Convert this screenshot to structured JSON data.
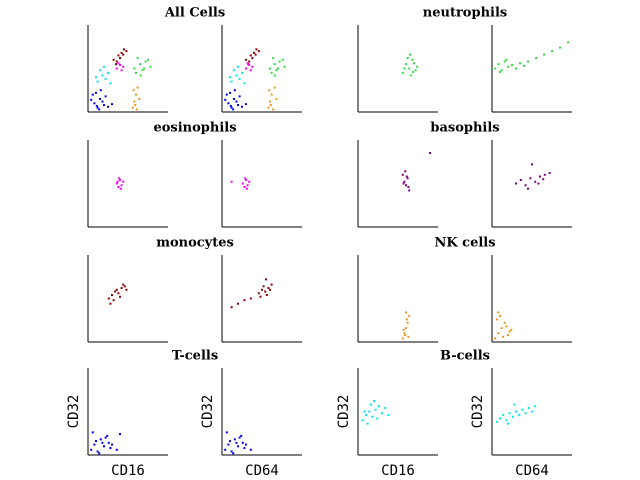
{
  "chart_data": [
    {
      "type": "scatter",
      "title": "All Cells",
      "xlim": [
        0,
        100
      ],
      "ylim": [
        0,
        100
      ],
      "series": [
        {
          "color": "#0000ff",
          "x": [
            8,
            12,
            15,
            20,
            6,
            18,
            25,
            10,
            14,
            22,
            30,
            4,
            16,
            11
          ],
          "y": [
            10,
            5,
            15,
            8,
            20,
            12,
            6,
            22,
            3,
            18,
            9,
            14,
            25,
            7
          ]
        },
        {
          "color": "#00e8e8",
          "x": [
            12,
            18,
            22,
            15,
            25,
            20,
            10,
            28
          ],
          "y": [
            35,
            42,
            38,
            48,
            45,
            52,
            40,
            33
          ]
        },
        {
          "color": "#8b0000",
          "x": [
            32,
            38,
            42,
            36,
            45,
            40,
            48,
            35,
            44
          ],
          "y": [
            60,
            65,
            68,
            58,
            72,
            62,
            70,
            55,
            66
          ]
        },
        {
          "color": "#ff00ff",
          "x": [
            36,
            40,
            42,
            38,
            44
          ],
          "y": [
            50,
            54,
            48,
            56,
            52
          ]
        },
        {
          "color": "#33dd44",
          "x": [
            60,
            65,
            70,
            75,
            62,
            68,
            72,
            78,
            66,
            58
          ],
          "y": [
            45,
            55,
            50,
            60,
            62,
            48,
            58,
            52,
            42,
            50
          ]
        },
        {
          "color": "#e89820",
          "x": [
            56,
            58,
            60,
            62,
            59,
            64,
            57,
            61
          ],
          "y": [
            5,
            12,
            20,
            28,
            8,
            15,
            25,
            3
          ]
        }
      ]
    },
    {
      "type": "scatter",
      "xlim": [
        0,
        100
      ],
      "ylim": [
        0,
        100
      ],
      "series": [
        {
          "color": "#0000ff",
          "x": [
            8,
            12,
            15,
            20,
            6,
            18,
            25,
            10,
            14,
            22,
            30,
            4,
            16,
            11
          ],
          "y": [
            10,
            5,
            15,
            8,
            20,
            12,
            6,
            22,
            3,
            18,
            9,
            14,
            25,
            7
          ]
        },
        {
          "color": "#00e8e8",
          "x": [
            12,
            18,
            22,
            15,
            25,
            20,
            10,
            28
          ],
          "y": [
            35,
            42,
            38,
            48,
            45,
            52,
            40,
            33
          ]
        },
        {
          "color": "#8b0000",
          "x": [
            30,
            36,
            40,
            34,
            43,
            38,
            46,
            33,
            42
          ],
          "y": [
            60,
            65,
            68,
            58,
            72,
            62,
            70,
            55,
            66
          ]
        },
        {
          "color": "#ff00ff",
          "x": [
            30,
            34,
            36,
            32,
            38
          ],
          "y": [
            50,
            54,
            48,
            56,
            52
          ]
        },
        {
          "color": "#33dd44",
          "x": [
            62,
            66,
            70,
            76,
            64,
            68,
            72,
            78,
            66,
            60
          ],
          "y": [
            45,
            55,
            50,
            60,
            62,
            48,
            58,
            52,
            42,
            50
          ]
        },
        {
          "color": "#e89820",
          "x": [
            58,
            60,
            62,
            66,
            61,
            68,
            59,
            64
          ],
          "y": [
            5,
            12,
            20,
            28,
            8,
            15,
            25,
            3
          ]
        }
      ]
    },
    {
      "type": "scatter",
      "title": "neutrophils",
      "xlim": [
        0,
        100
      ],
      "ylim": [
        0,
        100
      ],
      "series": [
        {
          "color": "#33dd44",
          "x": [
            56,
            60,
            64,
            68,
            72,
            62,
            66,
            70,
            74,
            58,
            65,
            69
          ],
          "y": [
            45,
            55,
            50,
            60,
            48,
            62,
            42,
            56,
            52,
            50,
            66,
            46
          ]
        }
      ]
    },
    {
      "type": "scatter",
      "xlim": [
        0,
        100
      ],
      "ylim": [
        0,
        100
      ],
      "series": [
        {
          "color": "#33dd44",
          "x": [
            4,
            8,
            12,
            16,
            20,
            25,
            30,
            35,
            40,
            10,
            18,
            45,
            55,
            65,
            75,
            85,
            95
          ],
          "y": [
            50,
            55,
            48,
            58,
            52,
            54,
            50,
            56,
            53,
            46,
            60,
            58,
            62,
            66,
            70,
            74,
            80
          ]
        }
      ]
    },
    {
      "type": "scatter",
      "title": "eosinophils",
      "xlim": [
        0,
        100
      ],
      "ylim": [
        0,
        100
      ],
      "series": [
        {
          "color": "#ff00ff",
          "x": [
            36,
            38,
            40,
            42,
            44,
            39,
            41,
            37
          ],
          "y": [
            50,
            46,
            54,
            48,
            52,
            56,
            44,
            52
          ]
        }
      ]
    },
    {
      "type": "scatter",
      "xlim": [
        0,
        100
      ],
      "ylim": [
        0,
        100
      ],
      "series": [
        {
          "color": "#ff00ff",
          "x": [
            26,
            28,
            30,
            32,
            34,
            29,
            31,
            12
          ],
          "y": [
            50,
            46,
            54,
            48,
            52,
            56,
            44,
            52
          ]
        }
      ]
    },
    {
      "type": "scatter",
      "title": "basophils",
      "xlim": [
        0,
        100
      ],
      "ylim": [
        0,
        100
      ],
      "series": [
        {
          "color": "#800080",
          "x": [
            56,
            58,
            60,
            62,
            64,
            59,
            61,
            57,
            63,
            90
          ],
          "y": [
            60,
            52,
            48,
            56,
            42,
            64,
            58,
            50,
            46,
            85
          ]
        }
      ]
    },
    {
      "type": "scatter",
      "xlim": [
        0,
        100
      ],
      "ylim": [
        0,
        100
      ],
      "series": [
        {
          "color": "#800080",
          "x": [
            30,
            36,
            42,
            48,
            54,
            60,
            66,
            72,
            45,
            58,
            50,
            64
          ],
          "y": [
            50,
            54,
            48,
            56,
            52,
            58,
            60,
            62,
            44,
            50,
            72,
            55
          ]
        }
      ]
    },
    {
      "type": "scatter",
      "title": "monocytes",
      "xlim": [
        0,
        100
      ],
      "ylim": [
        0,
        100
      ],
      "series": [
        {
          "color": "#8b0000",
          "x": [
            26,
            30,
            34,
            38,
            42,
            46,
            32,
            36,
            40,
            44,
            48,
            28
          ],
          "y": [
            50,
            54,
            58,
            56,
            62,
            64,
            48,
            60,
            52,
            66,
            60,
            44
          ]
        }
      ]
    },
    {
      "type": "scatter",
      "xlim": [
        0,
        100
      ],
      "ylim": [
        0,
        100
      ],
      "series": [
        {
          "color": "#8b0000",
          "x": [
            46,
            50,
            54,
            58,
            62,
            52,
            56,
            60,
            48,
            12,
            20,
            28,
            36,
            55
          ],
          "y": [
            56,
            60,
            58,
            62,
            66,
            64,
            54,
            60,
            52,
            40,
            44,
            48,
            50,
            72
          ]
        }
      ]
    },
    {
      "type": "scatter",
      "title": "NK cells",
      "xlim": [
        0,
        100
      ],
      "ylim": [
        0,
        100
      ],
      "series": [
        {
          "color": "#e89820",
          "x": [
            56,
            58,
            60,
            62,
            64,
            59,
            61,
            57,
            63,
            60
          ],
          "y": [
            4,
            10,
            16,
            22,
            30,
            8,
            26,
            14,
            6,
            34
          ]
        }
      ]
    },
    {
      "type": "scatter",
      "xlim": [
        0,
        100
      ],
      "ylim": [
        0,
        100
      ],
      "series": [
        {
          "color": "#e89820",
          "x": [
            4,
            8,
            12,
            16,
            20,
            24,
            6,
            10,
            14,
            18,
            22,
            8
          ],
          "y": [
            4,
            10,
            16,
            22,
            8,
            14,
            26,
            30,
            6,
            18,
            12,
            34
          ]
        }
      ]
    },
    {
      "type": "scatter",
      "title": "T-cells",
      "xlabel": "CD16",
      "ylabel": "CD32",
      "xlim": [
        0,
        100
      ],
      "ylim": [
        0,
        100
      ],
      "series": [
        {
          "color": "#0000ff",
          "x": [
            4,
            8,
            12,
            16,
            20,
            24,
            28,
            6,
            10,
            14,
            18,
            22,
            30,
            36,
            40,
            26
          ],
          "y": [
            6,
            12,
            4,
            18,
            10,
            22,
            8,
            26,
            16,
            2,
            14,
            20,
            12,
            6,
            24,
            14
          ]
        }
      ]
    },
    {
      "type": "scatter",
      "xlabel": "CD64",
      "ylabel": "CD32",
      "xlim": [
        0,
        100
      ],
      "ylim": [
        0,
        100
      ],
      "series": [
        {
          "color": "#0000ff",
          "x": [
            4,
            8,
            12,
            16,
            20,
            24,
            28,
            6,
            10,
            14,
            18,
            22,
            30,
            36,
            26
          ],
          "y": [
            6,
            12,
            4,
            18,
            10,
            22,
            8,
            26,
            16,
            2,
            14,
            20,
            12,
            6,
            14
          ]
        }
      ]
    },
    {
      "type": "scatter",
      "title": "B-cells",
      "xlabel": "CD16",
      "ylabel": "CD32",
      "xlim": [
        0,
        100
      ],
      "ylim": [
        0,
        100
      ],
      "series": [
        {
          "color": "#00e8e8",
          "x": [
            6,
            10,
            14,
            18,
            22,
            26,
            30,
            12,
            16,
            20,
            24,
            34,
            38,
            8
          ],
          "y": [
            40,
            46,
            50,
            44,
            52,
            56,
            48,
            36,
            58,
            62,
            42,
            54,
            46,
            50
          ]
        }
      ]
    },
    {
      "type": "scatter",
      "xlabel": "CD64",
      "ylabel": "CD32",
      "xlim": [
        0,
        100
      ],
      "ylim": [
        0,
        100
      ],
      "series": [
        {
          "color": "#00e8e8",
          "x": [
            6,
            10,
            14,
            18,
            22,
            26,
            30,
            34,
            38,
            42,
            46,
            50,
            54,
            20,
            28
          ],
          "y": [
            38,
            42,
            46,
            40,
            48,
            44,
            50,
            46,
            52,
            48,
            54,
            50,
            56,
            36,
            58
          ]
        }
      ]
    }
  ]
}
